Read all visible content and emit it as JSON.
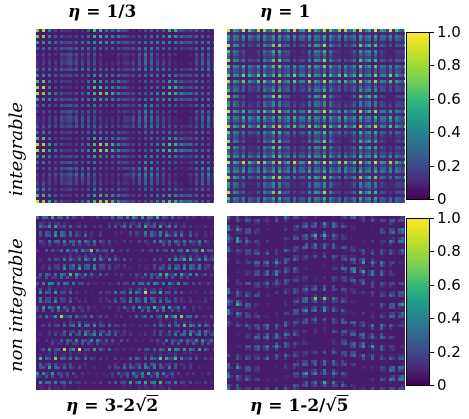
{
  "chart_data": [
    {
      "type": "heatmap",
      "row": "integrable",
      "title_prefix": "η =",
      "title_value": "1/3",
      "pattern": "lattice-fine",
      "zlim": [
        0,
        1
      ]
    },
    {
      "type": "heatmap",
      "row": "integrable",
      "title_prefix": "η =",
      "title_value": "1",
      "pattern": "lattice-blobs",
      "zlim": [
        0,
        1
      ]
    },
    {
      "type": "heatmap",
      "row": "non integrable",
      "title_prefix": "η =",
      "title_value": "3-2√2",
      "pattern": "irregular-bands",
      "zlim": [
        0,
        1
      ]
    },
    {
      "type": "heatmap",
      "row": "non integrable",
      "title_prefix": "η =",
      "title_value": "1-2/√5",
      "pattern": "irregular-dense",
      "zlim": [
        0,
        1
      ]
    }
  ],
  "rows": {
    "top_label": "integrable",
    "bottom_label": "non integrable"
  },
  "titles": {
    "eta": "η",
    "eq": "=",
    "t1": "1/3",
    "t2": "1",
    "t3_a": "3-2",
    "t3_b": "2",
    "t4_a": "1-2/",
    "t4_b": "5"
  },
  "colorbar": {
    "ticks": [
      "1.0",
      "0.8",
      "0.6",
      "0.4",
      "0.2",
      "0"
    ],
    "tick_values": [
      1.0,
      0.8,
      0.6,
      0.4,
      0.2,
      0
    ],
    "colormap": "viridis"
  }
}
